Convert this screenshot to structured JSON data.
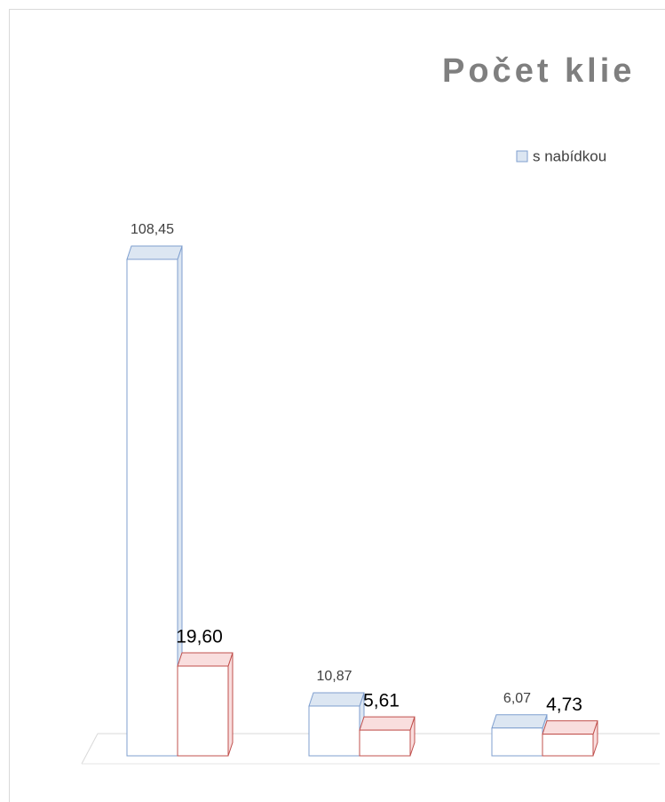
{
  "chart_data": {
    "type": "bar3d",
    "title": "Počet klie",
    "categories": [
      null,
      null,
      null
    ],
    "series": [
      {
        "name": "s nabídkou",
        "color": "#dce6f2",
        "edge": "#7f9fcf",
        "values": [
          108.45,
          10.87,
          6.07
        ],
        "value_labels": [
          "108,45",
          "10,87",
          "6,07"
        ]
      },
      {
        "color": "#f9dede",
        "edge": "#c0504d",
        "values": [
          19.6,
          5.61,
          4.73
        ],
        "value_labels": [
          "19,60",
          "5,61",
          "4,73"
        ]
      }
    ],
    "ylim": [
      0,
      108.45
    ]
  }
}
